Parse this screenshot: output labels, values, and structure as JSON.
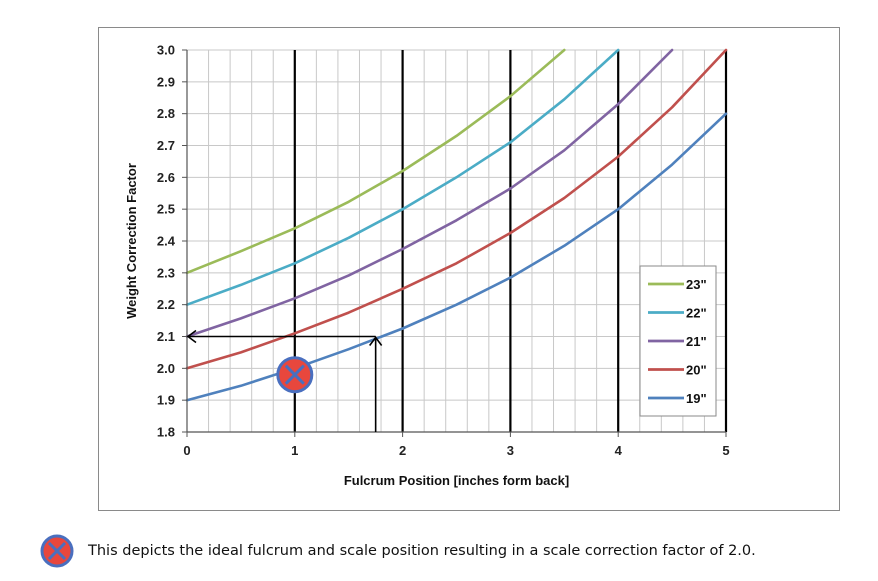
{
  "chart_data": {
    "type": "line",
    "xlabel": "Fulcrum Position  [inches form back]",
    "ylabel": "Weight Correction Factor",
    "xlim": [
      0,
      5
    ],
    "ylim": [
      1.8,
      3.0
    ],
    "x_ticks": [
      "0",
      "1",
      "2",
      "3",
      "4",
      "5"
    ],
    "y_ticks": [
      "1.8",
      "1.9",
      "2.0",
      "2.1",
      "2.2",
      "2.3",
      "2.4",
      "2.5",
      "2.6",
      "2.7",
      "2.8",
      "2.9",
      "3.0"
    ],
    "grid": true,
    "legend_position": "right",
    "series": [
      {
        "name": "23\"",
        "color": "#9bbb59",
        "x": [
          0,
          0.5,
          1,
          1.5,
          2,
          2.5,
          3,
          3.5
        ],
        "y": [
          2.3,
          2.368,
          2.44,
          2.523,
          2.62,
          2.73,
          2.855,
          3.0
        ]
      },
      {
        "name": "22\"",
        "color": "#4bacc6",
        "x": [
          0,
          0.5,
          1,
          1.5,
          2,
          2.5,
          3,
          3.5,
          4
        ],
        "y": [
          2.2,
          2.262,
          2.33,
          2.41,
          2.5,
          2.6,
          2.71,
          2.845,
          3.0
        ]
      },
      {
        "name": "21\"",
        "color": "#8064a2",
        "x": [
          0,
          0.5,
          1,
          1.5,
          2,
          2.5,
          3,
          3.5,
          4,
          4.5
        ],
        "y": [
          2.1,
          2.157,
          2.22,
          2.292,
          2.375,
          2.465,
          2.565,
          2.685,
          2.83,
          3.0
        ]
      },
      {
        "name": "20\"",
        "color": "#c0504d",
        "x": [
          0,
          0.5,
          1,
          1.5,
          2,
          2.5,
          3,
          3.5,
          4,
          4.5,
          5
        ],
        "y": [
          2.0,
          2.05,
          2.11,
          2.175,
          2.25,
          2.33,
          2.425,
          2.535,
          2.665,
          2.82,
          3.0
        ]
      },
      {
        "name": "19\"",
        "color": "#4f81bd",
        "x": [
          0,
          0.5,
          1,
          1.5,
          2,
          2.5,
          3,
          3.5,
          4,
          4.5,
          5
        ],
        "y": [
          1.9,
          1.945,
          2.0,
          2.06,
          2.125,
          2.2,
          2.285,
          2.385,
          2.5,
          2.64,
          2.8
        ]
      }
    ],
    "annotations": {
      "marker": {
        "x": 1,
        "y": 1.98,
        "fill": "#e8473d",
        "ring": "#4a6fbf"
      },
      "arrow_path": {
        "x_start": 1.75,
        "x_end": 0,
        "y_level": 2.1
      }
    }
  },
  "caption": {
    "text": "This depicts the ideal fulcrum and scale position resulting in a scale correction factor of 2.0."
  }
}
